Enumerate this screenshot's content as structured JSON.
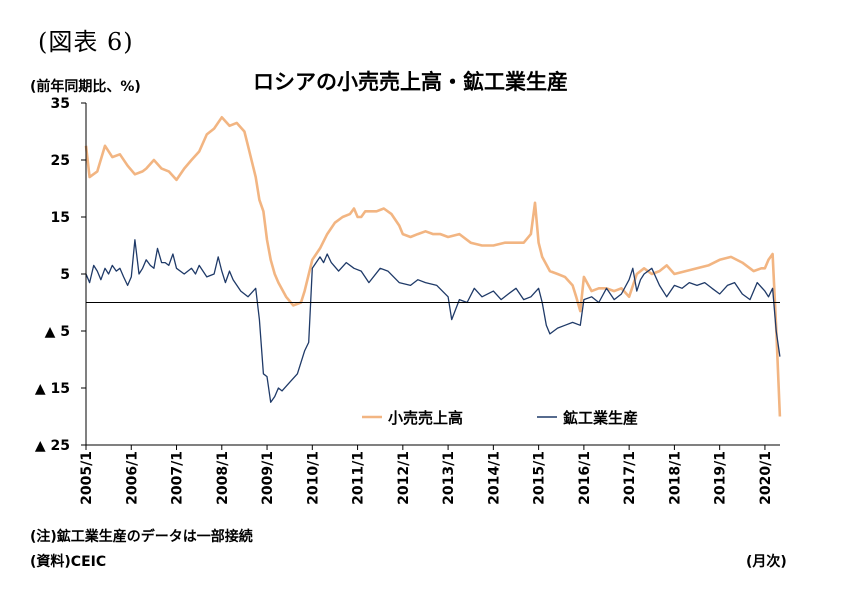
{
  "figure_label": "(図表 6)",
  "y_unit_label": "(前年同期比、%)",
  "x_unit_label": "(月次)",
  "note": "(注)鉱工業生産のデータは一部接続",
  "source": "(資料)CEIC",
  "colors": {
    "retail": "#F2B582",
    "industry": "#1F3A68",
    "axis": "#000000"
  },
  "chart_data": {
    "type": "line",
    "title": "ロシアの小売売上高・鉱工業生産",
    "ylabel": "(前年同期比、%)",
    "xlabel": "(月次)",
    "ylim": [
      -25,
      35
    ],
    "yticks": [
      35,
      25,
      15,
      5,
      -5,
      -15,
      -25
    ],
    "ytick_labels": [
      "35",
      "25",
      "15",
      "5",
      "▲ 5",
      "▲ 15",
      "▲ 25"
    ],
    "x_range": [
      2005.0,
      2020.333
    ],
    "x_ticks": [
      2005,
      2006,
      2007,
      2008,
      2009,
      2010,
      2011,
      2012,
      2013,
      2014,
      2015,
      2016,
      2017,
      2018,
      2019,
      2020
    ],
    "x_tick_labels": [
      "2005/1",
      "2006/1",
      "2007/1",
      "2008/1",
      "2009/1",
      "2010/1",
      "2011/1",
      "2012/1",
      "2013/1",
      "2014/1",
      "2015/1",
      "2016/1",
      "2017/1",
      "2018/1",
      "2019/1",
      "2020/1"
    ],
    "grid": false,
    "legend_position": "bottom-center",
    "series": [
      {
        "name": "小売売上高",
        "color": "#F2B582",
        "x": [
          2005.0,
          2005.08,
          2005.25,
          2005.42,
          2005.58,
          2005.75,
          2005.92,
          2006.08,
          2006.25,
          2006.33,
          2006.5,
          2006.67,
          2006.83,
          2007.0,
          2007.17,
          2007.33,
          2007.5,
          2007.67,
          2007.83,
          2008.0,
          2008.17,
          2008.33,
          2008.5,
          2008.58,
          2008.75,
          2008.83,
          2008.92,
          2009.0,
          2009.08,
          2009.17,
          2009.25,
          2009.42,
          2009.58,
          2009.75,
          2009.83,
          2010.0,
          2010.17,
          2010.33,
          2010.5,
          2010.67,
          2010.83,
          2010.92,
          2011.0,
          2011.08,
          2011.17,
          2011.25,
          2011.42,
          2011.58,
          2011.75,
          2011.92,
          2012.0,
          2012.17,
          2012.33,
          2012.5,
          2012.67,
          2012.83,
          2013.0,
          2013.25,
          2013.5,
          2013.75,
          2014.0,
          2014.25,
          2014.5,
          2014.67,
          2014.83,
          2014.92,
          2015.0,
          2015.08,
          2015.25,
          2015.42,
          2015.58,
          2015.75,
          2015.83,
          2015.92,
          2016.0,
          2016.17,
          2016.33,
          2016.5,
          2016.67,
          2016.83,
          2017.0,
          2017.17,
          2017.33,
          2017.5,
          2017.67,
          2017.83,
          2018.0,
          2018.25,
          2018.5,
          2018.75,
          2019.0,
          2019.25,
          2019.5,
          2019.75,
          2019.92,
          2020.0,
          2020.08,
          2020.17,
          2020.25,
          2020.33
        ],
        "values": [
          27.5,
          22.0,
          23.0,
          27.5,
          25.5,
          26.0,
          24.0,
          22.5,
          23.0,
          23.5,
          25.0,
          23.5,
          23.0,
          21.5,
          23.5,
          25.0,
          26.5,
          29.5,
          30.5,
          32.5,
          31.0,
          31.5,
          30.0,
          27.5,
          22.0,
          18.0,
          16.0,
          11.0,
          7.5,
          5.0,
          3.5,
          1.0,
          -0.5,
          0.0,
          2.0,
          7.5,
          9.5,
          12.0,
          14.0,
          15.0,
          15.5,
          16.5,
          15.0,
          15.0,
          16.0,
          16.0,
          16.0,
          16.5,
          15.5,
          13.5,
          12.0,
          11.5,
          12.0,
          12.5,
          12.0,
          12.0,
          11.5,
          12.0,
          10.5,
          10.0,
          10.0,
          10.5,
          10.5,
          10.5,
          12.0,
          17.5,
          10.5,
          8.0,
          5.5,
          5.0,
          4.5,
          3.0,
          1.0,
          -1.5,
          4.5,
          2.0,
          2.5,
          2.5,
          2.0,
          2.5,
          1.0,
          5.0,
          6.0,
          5.0,
          5.5,
          6.5,
          5.0,
          5.5,
          6.0,
          6.5,
          7.5,
          8.0,
          7.0,
          5.5,
          6.0,
          6.0,
          7.5,
          8.5,
          -4.5,
          -20.0
        ]
      },
      {
        "name": "鉱工業生産",
        "color": "#1F3A68",
        "x": [
          2005.0,
          2005.08,
          2005.17,
          2005.25,
          2005.33,
          2005.42,
          2005.5,
          2005.58,
          2005.67,
          2005.75,
          2005.83,
          2005.92,
          2006.0,
          2006.08,
          2006.17,
          2006.25,
          2006.33,
          2006.42,
          2006.5,
          2006.58,
          2006.67,
          2006.75,
          2006.83,
          2006.92,
          2007.0,
          2007.17,
          2007.33,
          2007.42,
          2007.5,
          2007.67,
          2007.83,
          2007.92,
          2008.0,
          2008.08,
          2008.17,
          2008.25,
          2008.42,
          2008.58,
          2008.75,
          2008.83,
          2008.92,
          2009.0,
          2009.08,
          2009.17,
          2009.25,
          2009.33,
          2009.5,
          2009.67,
          2009.83,
          2009.92,
          2010.0,
          2010.17,
          2010.25,
          2010.33,
          2010.42,
          2010.58,
          2010.75,
          2010.92,
          2011.08,
          2011.25,
          2011.5,
          2011.67,
          2011.92,
          2012.17,
          2012.33,
          2012.5,
          2012.75,
          2013.0,
          2013.08,
          2013.25,
          2013.42,
          2013.58,
          2013.75,
          2014.0,
          2014.17,
          2014.33,
          2014.5,
          2014.67,
          2014.83,
          2015.0,
          2015.08,
          2015.17,
          2015.25,
          2015.42,
          2015.58,
          2015.75,
          2015.92,
          2016.0,
          2016.17,
          2016.33,
          2016.5,
          2016.67,
          2016.83,
          2017.0,
          2017.08,
          2017.17,
          2017.25,
          2017.33,
          2017.5,
          2017.67,
          2017.83,
          2018.0,
          2018.17,
          2018.33,
          2018.5,
          2018.67,
          2018.83,
          2019.0,
          2019.17,
          2019.33,
          2019.5,
          2019.67,
          2019.83,
          2020.0,
          2020.08,
          2020.17,
          2020.25,
          2020.33
        ],
        "values": [
          5.0,
          3.5,
          6.5,
          5.5,
          4.0,
          6.0,
          5.0,
          6.5,
          5.5,
          6.0,
          4.5,
          3.0,
          4.5,
          11.0,
          5.0,
          6.0,
          7.5,
          6.5,
          6.0,
          9.5,
          7.0,
          7.0,
          6.5,
          8.5,
          6.0,
          5.0,
          6.0,
          5.0,
          6.5,
          4.5,
          5.0,
          8.0,
          5.5,
          3.5,
          5.5,
          4.0,
          2.0,
          1.0,
          2.5,
          -3.0,
          -12.5,
          -13.0,
          -17.5,
          -16.5,
          -15.0,
          -15.5,
          -14.0,
          -12.5,
          -8.5,
          -7.0,
          6.0,
          8.0,
          7.0,
          8.5,
          7.0,
          5.5,
          7.0,
          6.0,
          5.5,
          3.5,
          6.0,
          5.5,
          3.5,
          3.0,
          4.0,
          3.5,
          3.0,
          1.0,
          -3.0,
          0.5,
          0.0,
          2.5,
          1.0,
          2.0,
          0.5,
          1.5,
          2.5,
          0.5,
          1.0,
          2.5,
          0.0,
          -4.0,
          -5.5,
          -4.5,
          -4.0,
          -3.5,
          -4.0,
          0.5,
          1.0,
          0.0,
          2.5,
          0.5,
          1.5,
          4.0,
          6.0,
          2.0,
          4.0,
          5.0,
          6.0,
          3.0,
          1.0,
          3.0,
          2.5,
          3.5,
          3.0,
          3.5,
          2.5,
          1.5,
          3.0,
          3.5,
          1.5,
          0.5,
          3.5,
          2.0,
          1.0,
          2.5,
          -5.0,
          -9.5
        ]
      }
    ]
  }
}
